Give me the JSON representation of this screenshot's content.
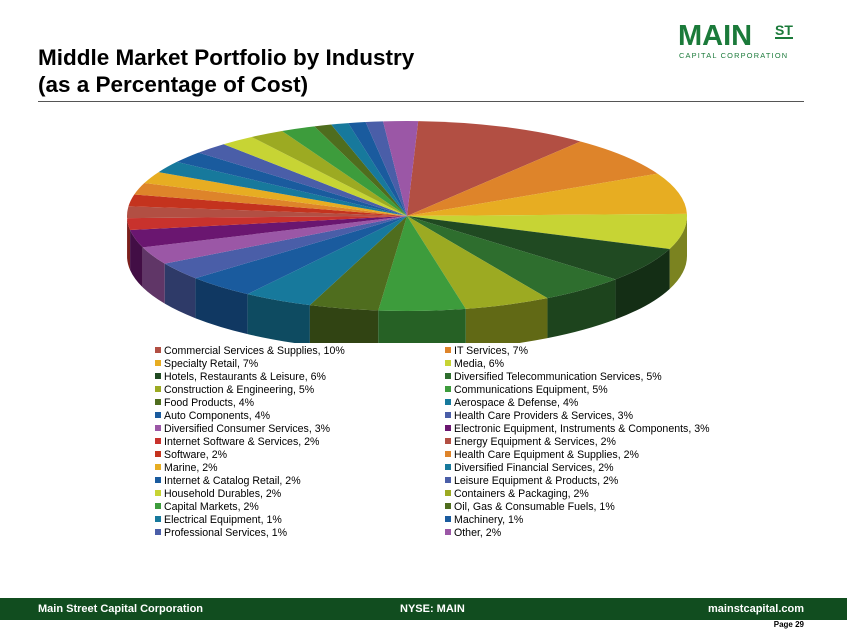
{
  "header": {
    "title_line1": "Middle Market Portfolio by Industry",
    "title_line2": "(as a Percentage of Cost)",
    "logo_main": "MAIN",
    "logo_st": "ST",
    "logo_sub": "CAPITAL CORPORATION"
  },
  "footer": {
    "left": "Main Street Capital Corporation",
    "center": "NYSE: MAIN",
    "right": "mainstcapital.com",
    "page_label": "Page",
    "page_number": "29"
  },
  "chart_data": {
    "type": "pie",
    "style": "3d",
    "slices": [
      {
        "label": "Commercial Services & Supplies, 10%",
        "value": 10,
        "color": "#b24f43"
      },
      {
        "label": "IT Services, 7%",
        "value": 7,
        "color": "#de842a"
      },
      {
        "label": "Specialty Retail, 7%",
        "value": 7,
        "color": "#e7ad22"
      },
      {
        "label": "Media, 6%",
        "value": 6,
        "color": "#c7d434"
      },
      {
        "label": "Hotels, Restaurants & Leisure, 6%",
        "value": 6,
        "color": "#204a22"
      },
      {
        "label": "Diversified Telecommunication Services, 5%",
        "value": 5,
        "color": "#2e6e2e"
      },
      {
        "label": "Construction & Engineering, 5%",
        "value": 5,
        "color": "#9caa22"
      },
      {
        "label": "Communications Equipment, 5%",
        "value": 5,
        "color": "#3d9c3c"
      },
      {
        "label": "Food Products, 4%",
        "value": 4,
        "color": "#4f6d1e"
      },
      {
        "label": "Aerospace & Defense, 4%",
        "value": 4,
        "color": "#17799c"
      },
      {
        "label": "Auto Components, 4%",
        "value": 4,
        "color": "#1a5b9e"
      },
      {
        "label": "Health Care Providers & Services, 3%",
        "value": 3,
        "color": "#4a5ea8"
      },
      {
        "label": "Diversified Consumer Services, 3%",
        "value": 3,
        "color": "#9b57a6"
      },
      {
        "label": "Electronic Equipment, Instruments & Components, 3%",
        "value": 3,
        "color": "#6a1670"
      },
      {
        "label": "Internet Software & Services, 2%",
        "value": 2,
        "color": "#c8322d"
      },
      {
        "label": "Energy Equipment & Services, 2%",
        "value": 2,
        "color": "#b24f43"
      },
      {
        "label": "Software, 2%",
        "value": 2,
        "color": "#c4331e"
      },
      {
        "label": "Health Care Equipment & Supplies, 2%",
        "value": 2,
        "color": "#de842a"
      },
      {
        "label": "Marine, 2%",
        "value": 2,
        "color": "#e7ad22"
      },
      {
        "label": "Diversified Financial Services, 2%",
        "value": 2,
        "color": "#17799c"
      },
      {
        "label": "Internet & Catalog Retail, 2%",
        "value": 2,
        "color": "#1a5b9e"
      },
      {
        "label": "Leisure Equipment & Products, 2%",
        "value": 2,
        "color": "#4a5ea8"
      },
      {
        "label": "Household Durables, 2%",
        "value": 2,
        "color": "#c7d434"
      },
      {
        "label": "Containers & Packaging, 2%",
        "value": 2,
        "color": "#9caa22"
      },
      {
        "label": "Capital Markets, 2%",
        "value": 2,
        "color": "#3d9c3c"
      },
      {
        "label": "Oil, Gas & Consumable Fuels, 1%",
        "value": 1,
        "color": "#4f6d1e"
      },
      {
        "label": "Electrical Equipment, 1%",
        "value": 1,
        "color": "#17799c"
      },
      {
        "label": "Machinery, 1%",
        "value": 1,
        "color": "#1a5b9e"
      },
      {
        "label": "Professional Services, 1%",
        "value": 1,
        "color": "#4a5ea8"
      },
      {
        "label": "Other, 2%",
        "value": 2,
        "color": "#9b57a6"
      }
    ]
  }
}
